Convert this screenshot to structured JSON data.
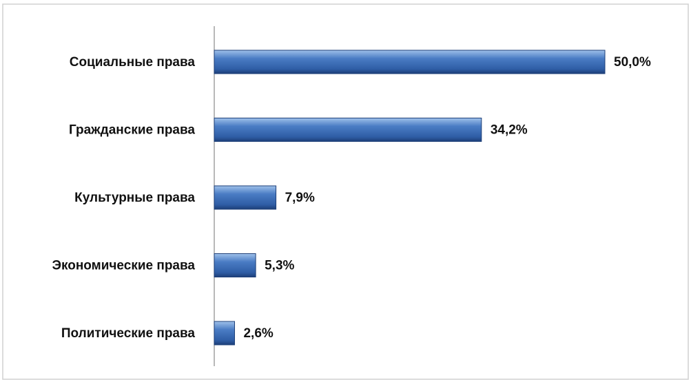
{
  "chart_data": {
    "type": "bar",
    "orientation": "horizontal",
    "categories": [
      "Социальные права",
      "Гражданские права",
      "Культурные права",
      "Экономические права",
      "Политические права"
    ],
    "values": [
      50.0,
      34.2,
      7.9,
      5.3,
      2.6
    ],
    "value_labels": [
      "50,0%",
      "34,2%",
      "7,9%",
      "5,3%",
      "2,6%"
    ],
    "color": "#4a7cc4"
  }
}
